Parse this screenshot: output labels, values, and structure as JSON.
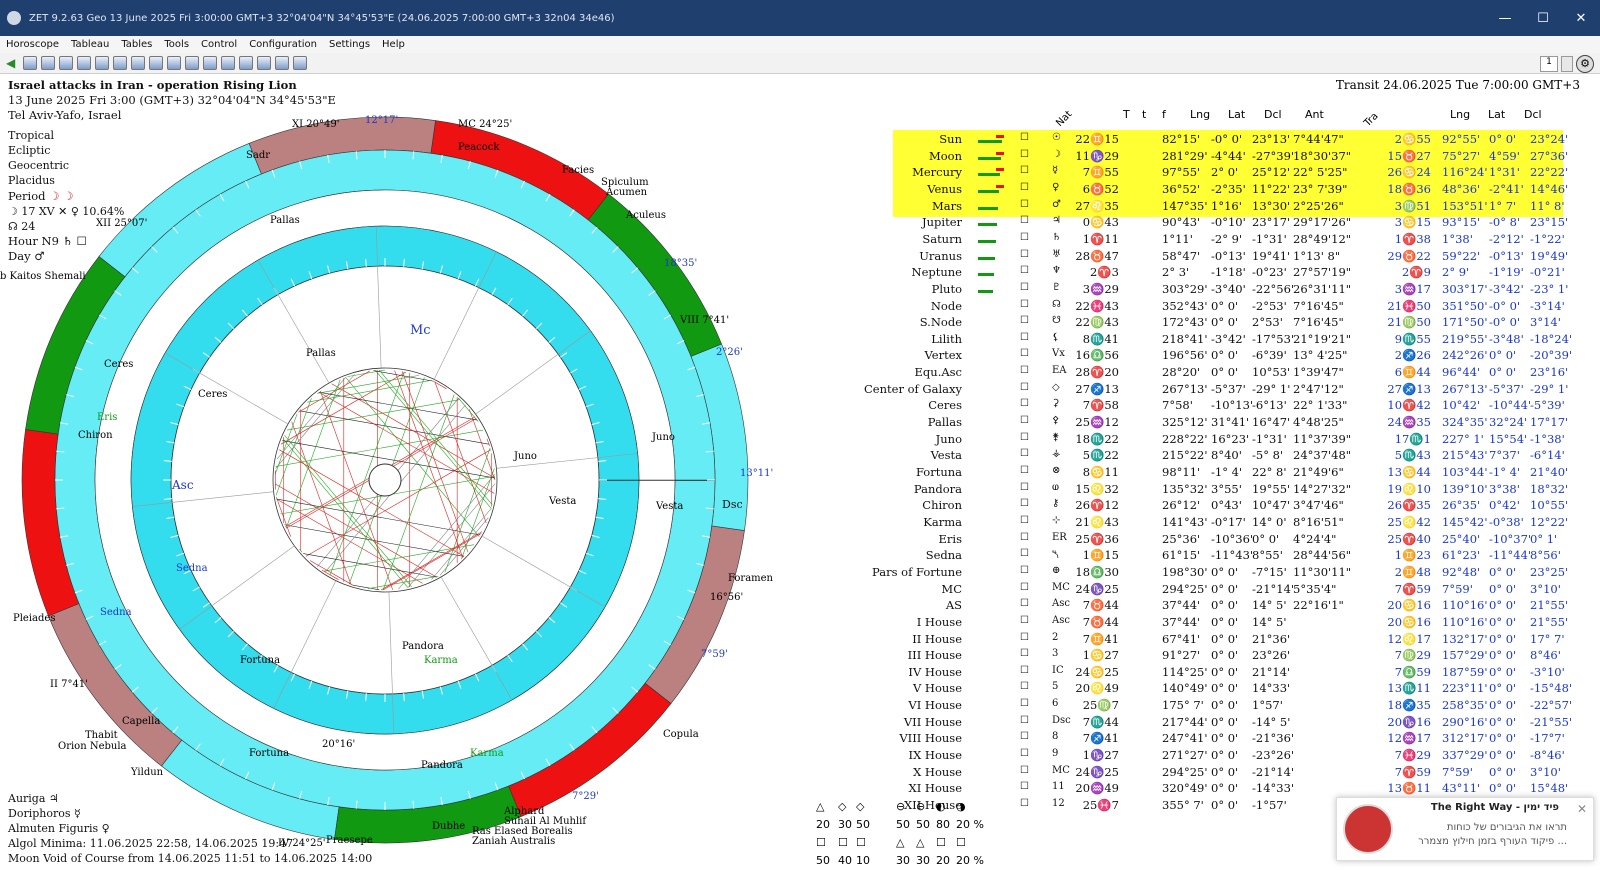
{
  "window": {
    "title": "ZET 9.2.63 Geo    13 June 2025   Fri    3:00:00 GMT+3 32°04'04\"N  34°45'53\"E    (24.06.2025    7:00:00 GMT+3 32n04 34e46)"
  },
  "menu": [
    "Horoscope",
    "Tableau",
    "Tables",
    "Tools",
    "Control",
    "Configuration",
    "Settings",
    "Help"
  ],
  "toolbar": {
    "spin_value": "1"
  },
  "chart_info": {
    "title": "Israel attacks in Iran - operation Rising Lion",
    "date_line": "13 June 2025  Fri   3:00 (GMT+3) 32°04'04\"N  34°45'53\"E",
    "place": "Tel Aviv-Yafo, Israel",
    "opts": [
      "Tropical",
      "Ecliptic",
      "Geocentric",
      "Placidus"
    ],
    "period": "Period",
    "period_val": "☽ ☽",
    "period_xv": "☽  17 XV  ✕ ♀ 10.64%",
    "period_24": "☊  24",
    "hour": "Hour N9  ♄ ☐",
    "day": "Day  ♂"
  },
  "transit_header": "Transit 24.06.2025   Tue   7:00:00 GMT+3",
  "table_headers": {
    "nat": "Nat",
    "T": "T",
    "t": "t",
    "f": "f",
    "lng": "Lng",
    "lat": "Lat",
    "dcl": "Dcl",
    "ant": "Ant",
    "tra": "Tra",
    "lng2": "Lng",
    "lat2": "Lat",
    "dcl2": "Dcl"
  },
  "rows": [
    [
      "Sun",
      "☉",
      "22♊15",
      "82°15'",
      "-0° 0'",
      "23°13'",
      "7°44'47\"",
      "2♋55",
      "92°55'",
      "0° 0'",
      "23°24'"
    ],
    [
      "Moon",
      "☽",
      "11♑29",
      "281°29'",
      "-4°44'",
      "-27°39'",
      "18°30'37\"",
      "15♉27",
      "75°27'",
      "4°59'",
      "27°36'"
    ],
    [
      "Mercury",
      "☿",
      "7♊55",
      "97°55'",
      "2° 0'",
      "25°12'",
      "22° 5'25\"",
      "26♋24",
      "116°24'",
      "1°31'",
      "22°22'"
    ],
    [
      "Venus",
      "♀",
      "6♉52",
      "36°52'",
      "-2°35'",
      "11°22'",
      "23° 7'39\"",
      "18♉36",
      "48°36'",
      "-2°41'",
      "14°46'"
    ],
    [
      "Mars",
      "♂",
      "27♌35",
      "147°35'",
      "1°16'",
      "13°30'",
      "2°25'26\"",
      "3♍51",
      "153°51'",
      "1° 7'",
      "11° 8'"
    ],
    [
      "Jupiter",
      "♃",
      "0♋43",
      "90°43'",
      "-0°10'",
      "23°17'",
      "29°17'26\"",
      "3♋15",
      "93°15'",
      "-0° 8'",
      "23°15'"
    ],
    [
      "Saturn",
      "♄",
      "1♈11",
      "1°11'",
      "-2° 9'",
      "-1°31'",
      "28°49'12\"",
      "1♈38",
      "1°38'",
      "-2°12'",
      "-1°22'"
    ],
    [
      "Uranus",
      "♅",
      "28♉47",
      "58°47'",
      "-0°13'",
      "19°41'",
      "1°13' 8\"",
      "29♉22",
      "59°22'",
      "-0°13'",
      "19°49'"
    ],
    [
      "Neptune",
      "♆",
      "2♈3",
      "2° 3'",
      "-1°18'",
      "-0°23'",
      "27°57'19\"",
      "2♈9",
      "2° 9'",
      "-1°19'",
      "-0°21'"
    ],
    [
      "Pluto",
      "♇",
      "3♒29",
      "303°29'",
      "-3°40'",
      "-22°56'",
      "26°31'11\"",
      "3♒17",
      "303°17'",
      "-3°42'",
      "-23° 1'"
    ],
    [
      "Node",
      "☊",
      "22♓43",
      "352°43'",
      "0° 0'",
      "-2°53'",
      "7°16'45\"",
      "21♓50",
      "351°50'",
      "-0° 0'",
      "-3°14'"
    ],
    [
      "S.Node",
      "☋",
      "22♍43",
      "172°43'",
      "0° 0'",
      "2°53'",
      "7°16'45\"",
      "21♍50",
      "171°50'",
      "-0° 0'",
      "3°14'"
    ],
    [
      "Lilith",
      "⚸",
      "8♏41",
      "218°41'",
      "-3°42'",
      "-17°53'",
      "21°19'21\"",
      "9♏55",
      "219°55'",
      "-3°48'",
      "-18°24'"
    ],
    [
      "Vertex",
      "Vx",
      "16♎56",
      "196°56'",
      "0° 0'",
      "-6°39'",
      "13° 4'25\"",
      "2♐26",
      "242°26'",
      "0° 0'",
      "-20°39'"
    ],
    [
      "Equ.Asc",
      "EA",
      "28♈20",
      "28°20'",
      "0° 0'",
      "10°53'",
      "1°39'47\"",
      "6♊44",
      "96°44'",
      "0° 0'",
      "23°16'"
    ],
    [
      "Center of Galaxy",
      "◇",
      "27♐13",
      "267°13'",
      "-5°37'",
      "-29° 1'",
      "2°47'12\"",
      "27♐13",
      "267°13'",
      "-5°37'",
      "-29° 1'"
    ],
    [
      "Ceres",
      "⚳",
      "7♈58",
      "7°58'",
      "-10°13'",
      "-6°13'",
      "22° 1'33\"",
      "10♈42",
      "10°42'",
      "-10°44'",
      "-5°39'"
    ],
    [
      "Pallas",
      "⚴",
      "25♒12",
      "325°12'",
      "31°41'",
      "16°47'",
      "4°48'25\"",
      "24♒35",
      "324°35'",
      "32°24'",
      "17°17'"
    ],
    [
      "Juno",
      "⚵",
      "18♏22",
      "228°22'",
      "16°23'",
      "-1°31'",
      "11°37'39\"",
      "17♏1",
      "227° 1'",
      "15°54'",
      "-1°38'"
    ],
    [
      "Vesta",
      "⚶",
      "5♏22",
      "215°22'",
      "8°40'",
      "-5° 8'",
      "24°37'48\"",
      "5♏43",
      "215°43'",
      "7°37'",
      "-6°14'"
    ],
    [
      "Fortuna",
      "⊗",
      "8♋11",
      "98°11'",
      "-1° 4'",
      "22° 8'",
      "21°49'6\"",
      "13♋44",
      "103°44'",
      "-1° 4'",
      "21°40'"
    ],
    [
      "Pandora",
      "ⱷ",
      "15♌32",
      "135°32'",
      "3°55'",
      "19°55'",
      "14°27'32\"",
      "19♌10",
      "139°10'",
      "3°38'",
      "18°32'"
    ],
    [
      "Chiron",
      "⚷",
      "26♈12",
      "26°12'",
      "0°43'",
      "10°47'",
      "3°47'46\"",
      "26♈35",
      "26°35'",
      "0°42'",
      "10°55'"
    ],
    [
      "Karma",
      "⊹",
      "21♌43",
      "141°43'",
      "-0°17'",
      "14° 0'",
      "8°16'51\"",
      "25♌42",
      "145°42'",
      "-0°38'",
      "12°22'"
    ],
    [
      "Eris",
      "ER",
      "25♈36",
      "25°36'",
      "-10°36'",
      "0° 0'",
      "4°24'4\"",
      "25♈40",
      "25°40'",
      "-10°37'",
      "0° 1'"
    ],
    [
      "Sedna",
      "⯲",
      "1♊15",
      "61°15'",
      "-11°43'",
      "8°55'",
      "28°44'56\"",
      "1♊23",
      "61°23'",
      "-11°44'",
      "8°56'"
    ],
    [
      "Pars of Fortune",
      "⊕",
      "18♎30",
      "198°30'",
      "0° 0'",
      "-7°15'",
      "11°30'11\"",
      "2♊48",
      "92°48'",
      "0° 0'",
      "23°25'"
    ],
    [
      "MC",
      "MC",
      "24♑25",
      "294°25'",
      "0° 0'",
      "-21°14'",
      "5°35'4\"",
      "7♈59",
      "7°59'",
      "0° 0'",
      "3°10'"
    ],
    [
      "AS",
      "Asc",
      "7♉44",
      "37°44'",
      "0° 0'",
      "14° 5'",
      "22°16'1\"",
      "20♋16",
      "110°16'",
      "0° 0'",
      "21°55'"
    ],
    [
      "I House",
      "Asc",
      "7♉44",
      "37°44'",
      "0° 0'",
      "14° 5'",
      "",
      "20♋16",
      "110°16'",
      "0° 0'",
      "21°55'"
    ],
    [
      "II House",
      "2",
      "7♊41",
      "67°41'",
      "0° 0'",
      "21°36'",
      "",
      "12♌17",
      "132°17'",
      "0° 0'",
      "17° 7'"
    ],
    [
      "III House",
      "3",
      "1♋27",
      "91°27'",
      "0° 0'",
      "23°26'",
      "",
      "7♍29",
      "157°29'",
      "0° 0'",
      "8°46'"
    ],
    [
      "IV House",
      "IC",
      "24♋25",
      "114°25'",
      "0° 0'",
      "21°14'",
      "",
      "7♎59",
      "187°59'",
      "0° 0'",
      "-3°10'"
    ],
    [
      "V House",
      "5",
      "20♌49",
      "140°49'",
      "0° 0'",
      "14°33'",
      "",
      "13♏11",
      "223°11'",
      "0° 0'",
      "-15°48'"
    ],
    [
      "VI House",
      "6",
      "25♍7",
      "175° 7'",
      "0° 0'",
      "1°57'",
      "",
      "18♐35",
      "258°35'",
      "0° 0'",
      "-22°57'"
    ],
    [
      "VII House",
      "Dsc",
      "7♏44",
      "217°44'",
      "0° 0'",
      "-14° 5'",
      "",
      "20♑16",
      "290°16'",
      "0° 0'",
      "-21°55'"
    ],
    [
      "VIII House",
      "8",
      "7♐41",
      "247°41'",
      "0° 0'",
      "-21°36'",
      "",
      "12♒17",
      "312°17'",
      "0° 0'",
      "-17°7'"
    ],
    [
      "IX House",
      "9",
      "1♑27",
      "271°27'",
      "0° 0'",
      "-23°26'",
      "",
      "7♓29",
      "337°29'",
      "0° 0'",
      "-8°46'"
    ],
    [
      "X House",
      "MC",
      "24♑25",
      "294°25'",
      "0° 0'",
      "-21°14'",
      "",
      "7♈59",
      "7°59'",
      "0° 0'",
      "3°10'"
    ],
    [
      "XI House",
      "11",
      "20♒49",
      "320°49'",
      "0° 0'",
      "-14°33'",
      "",
      "13♉11",
      "43°11'",
      "0° 0'",
      "15°48'"
    ],
    [
      "XII House",
      "12",
      "25♓7",
      "355° 7'",
      "0° 0'",
      "-1°57'",
      "",
      "",
      "",
      "",
      ""
    ]
  ],
  "left_bottom": [
    "Auriga  ♃",
    "Doriphoros  ☿",
    "Almuten Figuris  ♀",
    "Algol Minima: 11.06.2025 22:58,  14.06.2025 19:47",
    "Moon Void of Course from 14.06.2025 11:51 to 14.06.2025 14:00"
  ],
  "aspect_stats": {
    "r1": [
      "20",
      "30",
      "50",
      "",
      "50",
      "50",
      "80",
      "20 %"
    ],
    "r2": [
      "50",
      "40",
      "10",
      "",
      "30",
      "30",
      "20",
      "20 %"
    ]
  },
  "ad": {
    "title": "The Right Way - פיד ימין",
    "line1": "תראו את הגיבורים של כוחות",
    "line2": "פיקוד העורף בזמן חילוץ מצמרר ..."
  },
  "wheel_labels": {
    "asc": "Asc",
    "mc": "Mc",
    "dsc": "Dsc",
    "peacock": "Peacock",
    "facies": "Facies",
    "spiculum": "Spiculum",
    "acumen": "Acumen",
    "aculeus": "Aculeus",
    "foramen": "Foramen",
    "copula": "Copula",
    "pleiades": "Pleiades",
    "capella": "Capella",
    "thabit": "Thabit",
    "orion": "Orion Nebula",
    "yildun": "Yildun",
    "alphard": "Alphard",
    "suhail": "Suhail Al Muhlif",
    "ras": "Ras Elased Borealis",
    "zaniah": "Zaniah Australis",
    "dubhe": "Dubhe",
    "praesepe": "Praesepe",
    "sadr": "Sadr",
    "kaitos": "b Kaitos Shemali",
    "pallas": "Pallas",
    "ceres": "Ceres",
    "eris": "Eris",
    "chiron": "Chiron",
    "juno": "Juno",
    "vesta": "Vesta",
    "sedna": "Sedna",
    "fortuna": "Fortuna",
    "pandora": "Pandora",
    "karma": "Karma",
    "deg1": "12°17'",
    "deg2": "18°35'",
    "deg3": "2°26'",
    "deg4": "13°11'",
    "deg5": "7°59'",
    "deg6": "7°29'",
    "deg7": "16°56'",
    "deg8": "20°16'",
    "deg9": "XI 20°49'",
    "deg10": "MC 24°25'",
    "deg11": "XII 25°07'",
    "deg12": "VIII 7°41'",
    "deg13": "II 7°41'",
    "deg14": "IV 24°25'"
  },
  "colors": {
    "titlebar": "#1f3f6e",
    "ring": "#33ddee",
    "red": "#ee1111",
    "green": "#119911",
    "rose": "#bb8080",
    "highlight": "#ffff33",
    "transit": "#1c38c8"
  }
}
